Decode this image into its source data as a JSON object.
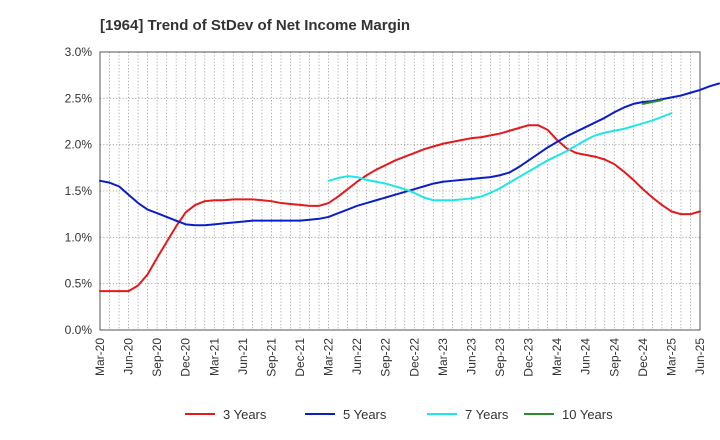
{
  "chart_data": {
    "type": "line",
    "title": "[1964]  Trend of StDev of Net Income Margin",
    "xlabel": "",
    "ylabel": "",
    "x_ticks": [
      "Mar-20",
      "Jun-20",
      "Sep-20",
      "Dec-20",
      "Mar-21",
      "Jun-21",
      "Sep-21",
      "Dec-21",
      "Mar-22",
      "Jun-22",
      "Sep-22",
      "Dec-22",
      "Mar-23",
      "Jun-23",
      "Sep-23",
      "Dec-23",
      "Mar-24",
      "Jun-24",
      "Sep-24",
      "Dec-24",
      "Mar-25",
      "Jun-25"
    ],
    "y_ticks": [
      "0.0%",
      "0.5%",
      "1.0%",
      "1.5%",
      "2.0%",
      "2.5%",
      "3.0%"
    ],
    "ylim": [
      0,
      3.0
    ],
    "y_unit": "%",
    "grid": true,
    "legend_position": "bottom",
    "series": [
      {
        "name": "3 Years",
        "color": "#e31a1c",
        "start": "Mar-20",
        "values": [
          0.42,
          0.42,
          0.42,
          0.42,
          0.48,
          0.6,
          0.78,
          0.95,
          1.12,
          1.27,
          1.35,
          1.39,
          1.4,
          1.4,
          1.41,
          1.41,
          1.41,
          1.4,
          1.39,
          1.37,
          1.36,
          1.35,
          1.34,
          1.34,
          1.37,
          1.44,
          1.52,
          1.6,
          1.67,
          1.73,
          1.78,
          1.83,
          1.87,
          1.91,
          1.95,
          1.98,
          2.01,
          2.03,
          2.05,
          2.07,
          2.08,
          2.1,
          2.12,
          2.15,
          2.18,
          2.21,
          2.21,
          2.16,
          2.05,
          1.96,
          1.91,
          1.89,
          1.87,
          1.84,
          1.79,
          1.71,
          1.62,
          1.52,
          1.43,
          1.35,
          1.28,
          1.25,
          1.25,
          1.28
        ]
      },
      {
        "name": "5 Years",
        "color": "#0a1ec8",
        "start": "Mar-20",
        "values": [
          1.61,
          1.59,
          1.55,
          1.46,
          1.37,
          1.3,
          1.26,
          1.22,
          1.18,
          1.14,
          1.13,
          1.13,
          1.14,
          1.15,
          1.16,
          1.17,
          1.18,
          1.18,
          1.18,
          1.18,
          1.18,
          1.18,
          1.19,
          1.2,
          1.22,
          1.26,
          1.3,
          1.34,
          1.37,
          1.4,
          1.43,
          1.46,
          1.49,
          1.52,
          1.55,
          1.58,
          1.6,
          1.61,
          1.62,
          1.63,
          1.64,
          1.65,
          1.67,
          1.7,
          1.76,
          1.83,
          1.9,
          1.97,
          2.03,
          2.09,
          2.14,
          2.19,
          2.24,
          2.29,
          2.35,
          2.4,
          2.44,
          2.46,
          2.47,
          2.49,
          2.51,
          2.53,
          2.56,
          2.59,
          2.63,
          2.66
        ]
      },
      {
        "name": "7 Years",
        "color": "#1ee6e6",
        "start": "Mar-22",
        "values": [
          1.61,
          1.64,
          1.66,
          1.65,
          1.62,
          1.6,
          1.58,
          1.55,
          1.52,
          1.48,
          1.43,
          1.4,
          1.4,
          1.4,
          1.41,
          1.42,
          1.44,
          1.48,
          1.53,
          1.59,
          1.65,
          1.71,
          1.77,
          1.83,
          1.88,
          1.93,
          1.99,
          2.05,
          2.1,
          2.13,
          2.15,
          2.17,
          2.2,
          2.23,
          2.26,
          2.3,
          2.34
        ]
      },
      {
        "name": "10 Years",
        "color": "#2e8b2e",
        "start": "Dec-24",
        "values": [
          2.44,
          2.46,
          2.48
        ]
      }
    ]
  }
}
